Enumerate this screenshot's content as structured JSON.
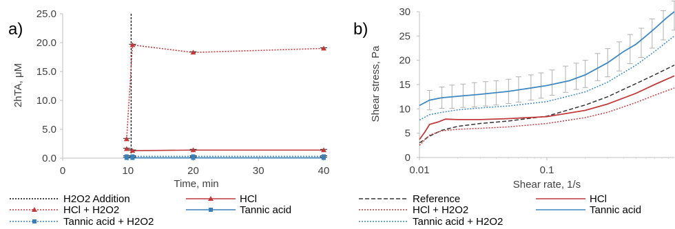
{
  "chart_data": [
    {
      "panel_label": "a)",
      "type": "line",
      "xlabel": "Time, min",
      "ylabel": "2hTA, μM",
      "xlim": [
        0,
        40
      ],
      "ylim": [
        0,
        25
      ],
      "xticks": [
        0,
        10,
        20,
        30,
        40
      ],
      "yticks": [
        "0.0",
        "5.0",
        "10.0",
        "15.0",
        "20.0",
        "25.0"
      ],
      "grid": false,
      "legend_position": "bottom",
      "vline": {
        "name": "H2O2 Addition",
        "x": 10.7,
        "color": "#000000"
      },
      "series": [
        {
          "name": "HCl",
          "color": "#c0393b",
          "style": "solid",
          "marker": "triangle",
          "x": [
            9.8,
            10.7,
            20,
            40
          ],
          "y": [
            1.6,
            1.3,
            1.4,
            1.4
          ]
        },
        {
          "name": "HCl + H2O2",
          "color": "#c0393b",
          "style": "dotted",
          "marker": "triangle",
          "x": [
            9.8,
            10.7,
            20,
            40
          ],
          "y": [
            3.3,
            19.6,
            18.3,
            19.0
          ]
        },
        {
          "name": "Tannic acid",
          "color": "#3b7fb8",
          "style": "solid",
          "marker": "square",
          "x": [
            9.8,
            10.7,
            20,
            40
          ],
          "y": [
            0.05,
            0.05,
            0.05,
            0.05
          ]
        },
        {
          "name": "Tannic acid + H2O2",
          "color": "#3b7fb8",
          "style": "dotted",
          "marker": "square",
          "x": [
            9.8,
            10.7,
            20,
            40
          ],
          "y": [
            0.3,
            0.3,
            0.3,
            0.3
          ]
        }
      ],
      "legend": [
        {
          "name": "H2O2 Addition",
          "color": "#000000",
          "style": "dotted",
          "marker": "none"
        },
        {
          "name": "HCl",
          "color": "#c0393b",
          "style": "solid",
          "marker": "triangle"
        },
        {
          "name": "HCl + H2O2",
          "color": "#c0393b",
          "style": "dotted",
          "marker": "triangle"
        },
        {
          "name": "Tannic acid",
          "color": "#3b7fb8",
          "style": "solid",
          "marker": "square"
        },
        {
          "name": "Tannic acid + H2O2",
          "color": "#3b7fb8",
          "style": "dotted",
          "marker": "square"
        }
      ]
    },
    {
      "panel_label": "b)",
      "type": "line",
      "xscale": "log",
      "xlabel": "Shear rate, 1/s",
      "ylabel": "Shear stress, Pa",
      "xlim": [
        0.01,
        1
      ],
      "ylim": [
        0,
        30
      ],
      "xticks": [
        0.01,
        0.1
      ],
      "xtick_labels": [
        "0.01",
        "0.1"
      ],
      "yticks": [
        "0",
        "5",
        "10",
        "15",
        "20",
        "25",
        "30"
      ],
      "grid": false,
      "legend_position": "bottom",
      "series": [
        {
          "name": "Reference",
          "color": "#333333",
          "style": "dashed",
          "x": [
            0.01,
            0.012,
            0.015,
            0.02,
            0.03,
            0.05,
            0.1,
            0.2,
            0.3,
            0.5,
            0.7,
            1.0
          ],
          "y": [
            3.0,
            4.4,
            5.6,
            6.4,
            7.0,
            7.5,
            8.5,
            10.8,
            12.5,
            15.2,
            17.0,
            19.0
          ]
        },
        {
          "name": "HCl",
          "color": "#c0393b",
          "style": "solid",
          "x": [
            0.01,
            0.011,
            0.012,
            0.014,
            0.016,
            0.02,
            0.03,
            0.05,
            0.1,
            0.2,
            0.3,
            0.5,
            0.7,
            1.0
          ],
          "y": [
            3.7,
            5.2,
            6.8,
            7.3,
            7.9,
            7.8,
            7.8,
            8.0,
            8.4,
            9.7,
            11.0,
            13.2,
            15.0,
            16.8
          ]
        },
        {
          "name": "HCl + H2O2",
          "color": "#c0393b",
          "style": "dotted",
          "x": [
            0.01,
            0.012,
            0.015,
            0.02,
            0.03,
            0.05,
            0.1,
            0.2,
            0.3,
            0.5,
            0.7,
            1.0
          ],
          "y": [
            2.5,
            4.6,
            5.5,
            5.8,
            6.0,
            6.3,
            7.0,
            8.2,
            9.3,
            11.3,
            12.8,
            14.3
          ]
        },
        {
          "name": "Tannic acid",
          "color": "#3d87c0",
          "style": "solid",
          "x": [
            0.01,
            0.012,
            0.015,
            0.02,
            0.03,
            0.05,
            0.1,
            0.15,
            0.2,
            0.3,
            0.4,
            0.5,
            0.6,
            0.7,
            0.85,
            1.0
          ],
          "y": [
            10.7,
            11.8,
            12.3,
            12.6,
            13.0,
            13.6,
            14.8,
            15.8,
            17.0,
            19.5,
            21.8,
            23.3,
            25.0,
            26.5,
            28.5,
            30.0
          ]
        },
        {
          "name": "Tannic acid + H2O2",
          "color": "#3d87c0",
          "style": "dotted",
          "x": [
            0.01,
            0.012,
            0.015,
            0.02,
            0.03,
            0.05,
            0.1,
            0.2,
            0.3,
            0.5,
            0.7,
            1.0
          ],
          "y": [
            7.7,
            8.8,
            9.3,
            9.8,
            10.2,
            10.6,
            11.5,
            13.5,
            15.5,
            19.0,
            21.8,
            25.0
          ]
        }
      ],
      "error_bars": {
        "series": "Tannic acid",
        "color": "#b0b0b0",
        "x": [
          0.012,
          0.015,
          0.018,
          0.022,
          0.027,
          0.033,
          0.04,
          0.05,
          0.06,
          0.075,
          0.09,
          0.11,
          0.14,
          0.17,
          0.2,
          0.25,
          0.3,
          0.37,
          0.45,
          0.55,
          0.67,
          0.82,
          1.0
        ],
        "y": [
          11.8,
          12.3,
          12.5,
          12.7,
          12.9,
          13.1,
          13.3,
          13.6,
          14.0,
          14.4,
          14.8,
          15.4,
          16.1,
          16.7,
          17.2,
          18.6,
          19.5,
          20.8,
          22.3,
          23.6,
          25.5,
          27.2,
          29.2
        ],
        "err": [
          2.0,
          2.2,
          2.4,
          2.4,
          2.5,
          2.5,
          2.5,
          2.5,
          2.6,
          2.6,
          2.6,
          2.6,
          2.7,
          2.7,
          2.8,
          2.8,
          2.9,
          3.0,
          3.0,
          3.0,
          3.0,
          3.0,
          3.0
        ]
      },
      "legend": [
        {
          "name": "Reference",
          "color": "#333333",
          "style": "dashed"
        },
        {
          "name": "HCl",
          "color": "#c0393b",
          "style": "solid"
        },
        {
          "name": "HCl + H2O2",
          "color": "#c0393b",
          "style": "dotted"
        },
        {
          "name": "Tannic acid",
          "color": "#3d87c0",
          "style": "solid"
        },
        {
          "name": "Tannic acid + H2O2",
          "color": "#3d87c0",
          "style": "dotted"
        }
      ]
    }
  ]
}
